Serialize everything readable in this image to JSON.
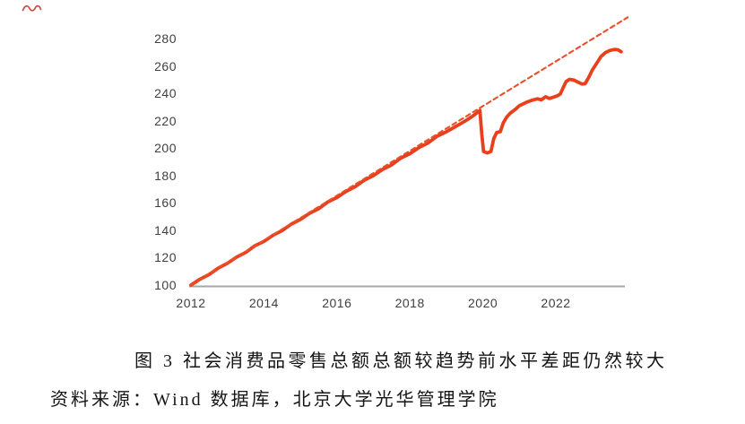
{
  "figure": {
    "caption_title": "图 3 社会消费品零售总额总额较趋势前水平差距仍然较大",
    "caption_source": "资料来源：Wind 数据库，北京大学光华管理学院"
  },
  "colors": {
    "line_actual": "#E8401D",
    "line_trend": "#EA4F2B",
    "axis": "#A6A6A6",
    "tick_text": "#3F3F3F",
    "pen_mark": "#C63A28"
  },
  "chart_data": {
    "type": "line",
    "title": "",
    "xlabel": "",
    "ylabel": "",
    "grid": false,
    "legend": "none",
    "x_range": [
      2012,
      2024.1
    ],
    "ylim": [
      100,
      295
    ],
    "x_ticks": [
      "2012",
      "2014",
      "2016",
      "2018",
      "2020",
      "2022"
    ],
    "x_tick_years": [
      2012,
      2014,
      2016,
      2018,
      2020,
      2022
    ],
    "y_ticks": [
      100,
      120,
      140,
      160,
      180,
      200,
      220,
      240,
      260,
      280
    ],
    "series": [
      {
        "id": "actual",
        "style": "solid",
        "color": "#E8401D",
        "width": 3.8,
        "points": [
          [
            2012.0,
            100.0
          ],
          [
            2012.25,
            104.3
          ],
          [
            2012.5,
            107.7
          ],
          [
            2012.75,
            112.4
          ],
          [
            2013.0,
            115.9
          ],
          [
            2013.25,
            120.4
          ],
          [
            2013.5,
            123.8
          ],
          [
            2013.75,
            128.7
          ],
          [
            2014.0,
            131.9
          ],
          [
            2014.25,
            136.4
          ],
          [
            2014.5,
            139.8
          ],
          [
            2014.75,
            144.5
          ],
          [
            2015.0,
            147.9
          ],
          [
            2015.25,
            152.4
          ],
          [
            2015.5,
            155.8
          ],
          [
            2015.75,
            160.7
          ],
          [
            2016.0,
            163.9
          ],
          [
            2016.25,
            168.4
          ],
          [
            2016.5,
            171.8
          ],
          [
            2016.75,
            176.5
          ],
          [
            2017.0,
            179.9
          ],
          [
            2017.25,
            184.4
          ],
          [
            2017.5,
            187.8
          ],
          [
            2017.75,
            192.7
          ],
          [
            2018.0,
            195.9
          ],
          [
            2018.25,
            200.4
          ],
          [
            2018.5,
            203.8
          ],
          [
            2018.75,
            208.7
          ],
          [
            2019.0,
            211.9
          ],
          [
            2019.25,
            215.7
          ],
          [
            2019.5,
            219.5
          ],
          [
            2019.7,
            223.0
          ],
          [
            2019.85,
            226.0
          ],
          [
            2019.92,
            227.5
          ],
          [
            2019.97,
            210.0
          ],
          [
            2020.02,
            197.5
          ],
          [
            2020.12,
            196.5
          ],
          [
            2020.22,
            197.5
          ],
          [
            2020.3,
            207.0
          ],
          [
            2020.38,
            211.5
          ],
          [
            2020.48,
            212.0
          ],
          [
            2020.56,
            218.5
          ],
          [
            2020.65,
            222.5
          ],
          [
            2020.75,
            225.5
          ],
          [
            2020.9,
            228.5
          ],
          [
            2021.0,
            231.0
          ],
          [
            2021.2,
            233.5
          ],
          [
            2021.35,
            235.0
          ],
          [
            2021.5,
            236.0
          ],
          [
            2021.6,
            235.2
          ],
          [
            2021.72,
            237.5
          ],
          [
            2021.82,
            236.3
          ],
          [
            2021.95,
            237.3
          ],
          [
            2022.05,
            238.3
          ],
          [
            2022.12,
            239.5
          ],
          [
            2022.2,
            244.0
          ],
          [
            2022.28,
            248.5
          ],
          [
            2022.37,
            250.2
          ],
          [
            2022.5,
            249.6
          ],
          [
            2022.62,
            248.0
          ],
          [
            2022.72,
            246.8
          ],
          [
            2022.8,
            247.0
          ],
          [
            2022.9,
            251.5
          ],
          [
            2023.0,
            257.0
          ],
          [
            2023.12,
            262.0
          ],
          [
            2023.24,
            267.0
          ],
          [
            2023.36,
            269.8
          ],
          [
            2023.48,
            271.3
          ],
          [
            2023.6,
            272.0
          ],
          [
            2023.7,
            271.8
          ],
          [
            2023.79,
            270.3
          ]
        ]
      },
      {
        "id": "trend",
        "style": "dashed",
        "color": "#EA4F2B",
        "width": 2.1,
        "points": [
          [
            2012.0,
            100.0
          ],
          [
            2023.97,
            295.5
          ]
        ]
      }
    ]
  }
}
